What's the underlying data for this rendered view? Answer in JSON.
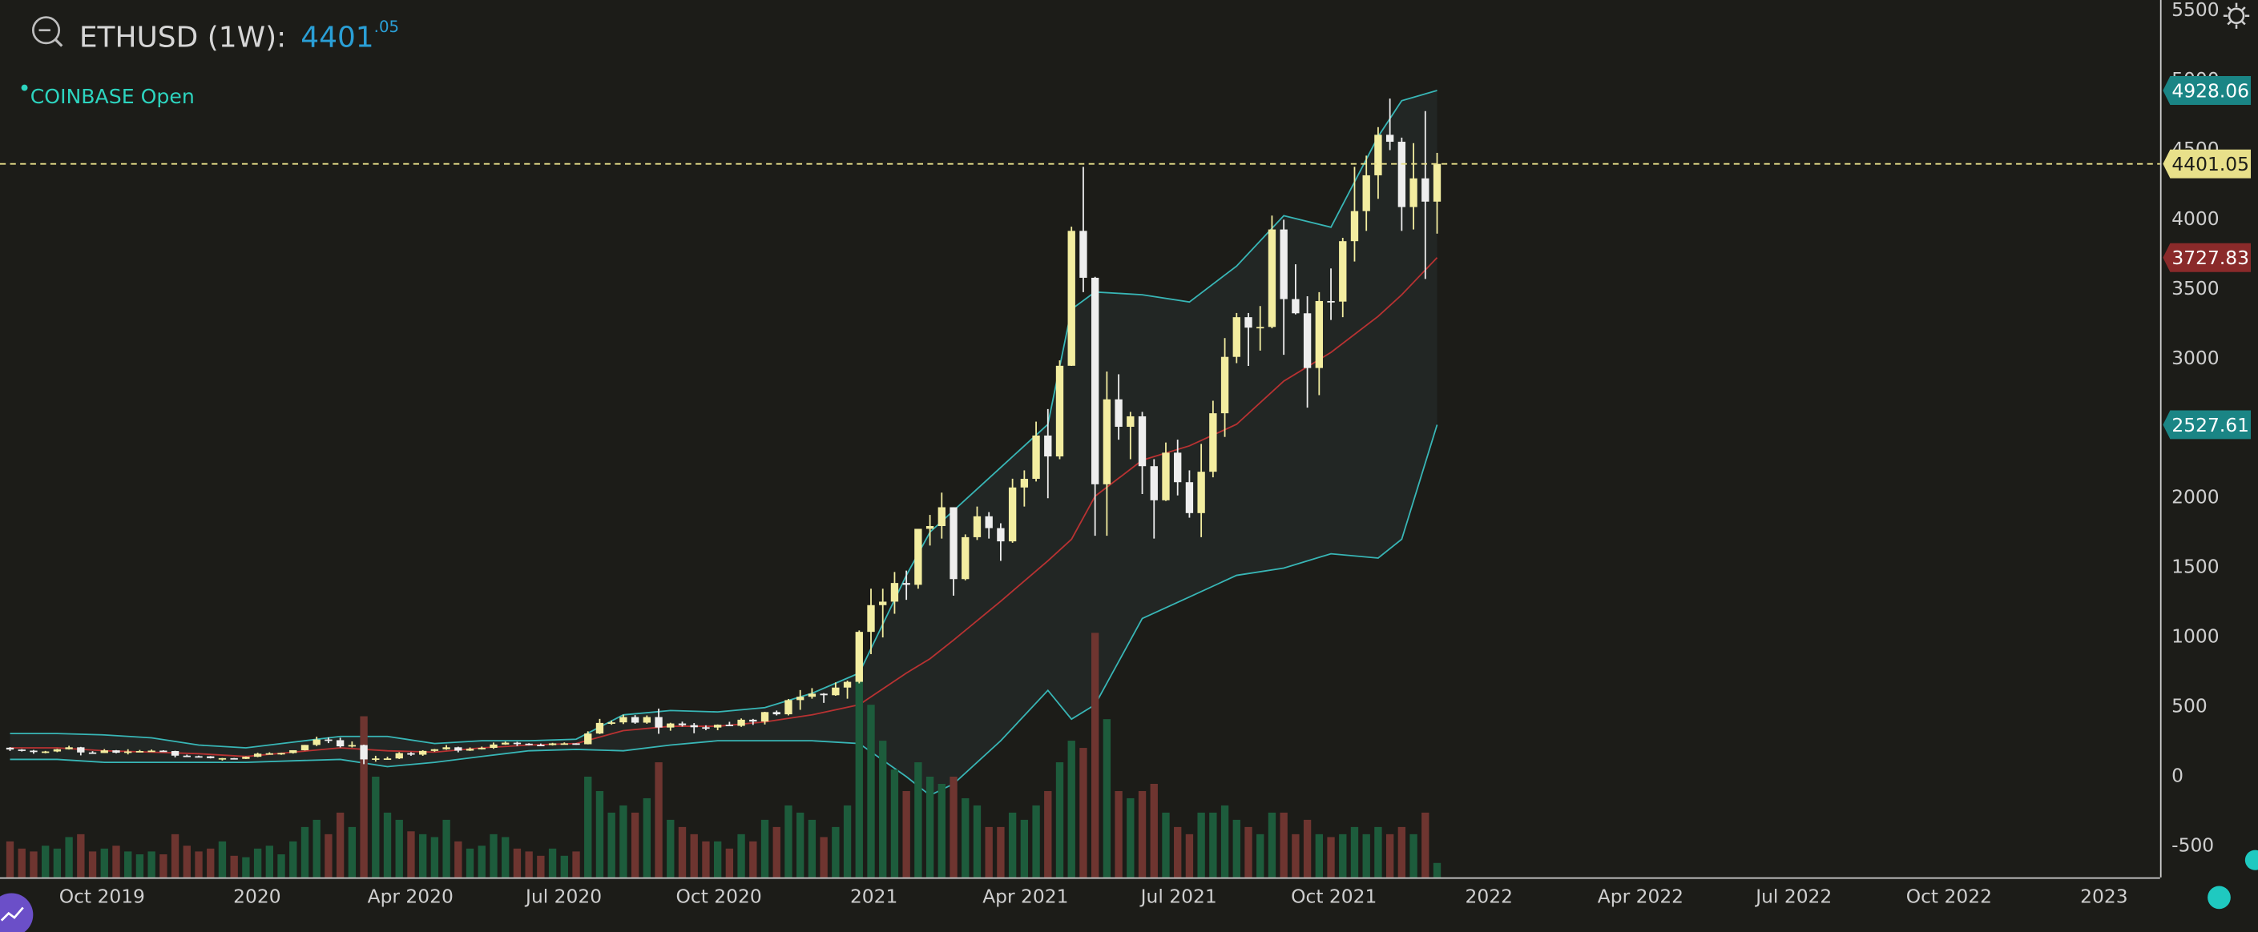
{
  "header": {
    "symbol": "ETHUSD (1W):",
    "price_int": "4401",
    "price_frac": ".05",
    "exchange": "COINBASE Open"
  },
  "chart_data": {
    "type": "candlestick",
    "up_color": "#f3eda0",
    "down_color": "#eeeeee",
    "volume_up_color": "#1d5c3c",
    "volume_down_color": "#6e3530",
    "open": [
      208,
      195,
      187,
      178,
      181,
      197,
      211,
      174,
      170,
      189,
      172,
      181,
      184,
      187,
      184,
      151,
      147,
      146,
      133,
      133,
      128,
      143,
      165,
      168,
      170,
      190,
      228,
      267,
      262,
      218,
      227,
      124,
      131,
      131,
      169,
      158,
      185,
      197,
      211,
      187,
      200,
      207,
      231,
      244,
      237,
      229,
      227,
      239,
      239,
      233,
      310,
      386,
      390,
      428,
      388,
      428,
      353,
      382,
      370,
      355,
      353,
      373,
      365,
      409,
      396,
      464,
      448,
      550,
      574,
      596,
      585,
      640,
      681,
      1040,
      1232,
      1257,
      1391,
      1378,
      1780,
      1800,
      1935,
      1419,
      1720,
      1870,
      1785,
      1690,
      2077,
      2139,
      2450,
      2300,
      2951,
      3920,
      3583,
      2100,
      2710,
      2513,
      2588,
      2230,
      1985,
      2327,
      2115,
      1893,
      2190,
      2610,
      3015,
      3300,
      3225,
      3230,
      3930,
      3430,
      3328,
      2935,
      3416,
      3412,
      3846,
      4062,
      4319,
      4610,
      4560,
      4091,
      4297,
      4130
    ],
    "high": [
      212,
      198,
      192,
      185,
      200,
      222,
      214,
      183,
      198,
      191,
      197,
      192,
      195,
      190,
      186,
      158,
      151,
      148,
      134,
      134,
      145,
      172,
      175,
      172,
      190,
      228,
      287,
      282,
      280,
      253,
      230,
      150,
      143,
      176,
      176,
      190,
      199,
      227,
      215,
      210,
      216,
      245,
      252,
      250,
      240,
      238,
      243,
      246,
      240,
      326,
      415,
      403,
      445,
      442,
      440,
      489,
      387,
      395,
      385,
      369,
      375,
      394,
      418,
      415,
      466,
      475,
      558,
      622,
      636,
      600,
      677,
      690,
      1050,
      1350,
      1350,
      1470,
      1480,
      1780,
      1880,
      2040,
      1935,
      1740,
      1940,
      1900,
      1820,
      2140,
      2200,
      2550,
      2640,
      2990,
      3950,
      4380,
      3590,
      2910,
      2890,
      2620,
      2620,
      2280,
      2400,
      2420,
      2200,
      2390,
      2700,
      3150,
      3330,
      3330,
      3380,
      4030,
      4000,
      3680,
      3450,
      3480,
      3650,
      3870,
      4380,
      4460,
      4665,
      4870,
      4590,
      4550,
      4780,
      4480
    ],
    "low": [
      185,
      181,
      165,
      168,
      176,
      195,
      153,
      168,
      170,
      168,
      160,
      178,
      183,
      180,
      139,
      143,
      144,
      131,
      116,
      125,
      127,
      140,
      160,
      157,
      166,
      188,
      220,
      241,
      210,
      210,
      90,
      108,
      126,
      127,
      150,
      150,
      179,
      193,
      175,
      185,
      195,
      200,
      229,
      220,
      225,
      220,
      224,
      237,
      229,
      232,
      306,
      373,
      378,
      380,
      380,
      308,
      330,
      360,
      312,
      334,
      334,
      363,
      358,
      372,
      375,
      440,
      440,
      480,
      560,
      530,
      581,
      560,
      670,
      880,
      1000,
      1170,
      1270,
      1350,
      1660,
      1710,
      1300,
      1410,
      1700,
      1710,
      1550,
      1680,
      1940,
      2120,
      2000,
      2280,
      2950,
      3480,
      1730,
      1730,
      2420,
      2280,
      2030,
      1710,
      1980,
      2020,
      1860,
      1720,
      2150,
      2440,
      2970,
      2950,
      3060,
      3220,
      3030,
      3320,
      2650,
      2740,
      3280,
      3300,
      3700,
      3920,
      4150,
      4500,
      3920,
      3930,
      3575,
      3900
    ],
    "close": [
      195,
      187,
      178,
      181,
      197,
      211,
      174,
      170,
      189,
      172,
      181,
      184,
      187,
      184,
      151,
      147,
      146,
      133,
      133,
      128,
      143,
      165,
      168,
      170,
      190,
      228,
      267,
      262,
      218,
      227,
      124,
      131,
      131,
      169,
      158,
      185,
      197,
      211,
      187,
      200,
      207,
      231,
      244,
      237,
      229,
      227,
      239,
      239,
      233,
      310,
      386,
      390,
      428,
      388,
      428,
      353,
      382,
      370,
      355,
      353,
      373,
      365,
      409,
      396,
      464,
      448,
      550,
      574,
      596,
      585,
      640,
      681,
      1040,
      1232,
      1257,
      1391,
      1378,
      1780,
      1800,
      1935,
      1419,
      1720,
      1870,
      1785,
      1690,
      2077,
      2139,
      2450,
      2300,
      2951,
      3920,
      3583,
      2100,
      2710,
      2513,
      2588,
      2230,
      1985,
      2327,
      2115,
      1893,
      2190,
      2610,
      3015,
      3300,
      3225,
      3230,
      3930,
      3430,
      3328,
      2935,
      3416,
      3412,
      3846,
      4062,
      4319,
      4610,
      4560,
      4091,
      4297,
      4130,
      4401.05
    ],
    "volume": [
      25,
      20,
      18,
      22,
      20,
      28,
      30,
      18,
      20,
      22,
      18,
      16,
      18,
      16,
      30,
      22,
      18,
      20,
      25,
      15,
      14,
      20,
      22,
      16,
      25,
      35,
      40,
      30,
      45,
      35,
      112,
      70,
      45,
      40,
      32,
      30,
      28,
      40,
      25,
      20,
      22,
      30,
      28,
      20,
      18,
      15,
      20,
      15,
      18,
      70,
      60,
      45,
      50,
      45,
      55,
      80,
      40,
      35,
      30,
      25,
      25,
      20,
      30,
      25,
      40,
      35,
      50,
      45,
      40,
      28,
      35,
      50,
      140,
      120,
      95,
      75,
      60,
      80,
      70,
      65,
      70,
      55,
      50,
      35,
      35,
      45,
      40,
      50,
      60,
      80,
      95,
      90,
      170,
      110,
      60,
      55,
      60,
      65,
      45,
      35,
      30,
      45,
      45,
      50,
      40,
      35,
      30,
      45,
      45,
      30,
      40,
      30,
      28,
      30,
      35,
      30,
      35,
      30,
      35,
      30,
      45,
      10
    ],
    "bands": {
      "x": [
        0,
        4,
        8,
        12,
        16,
        20,
        24,
        28,
        32,
        36,
        40,
        44,
        48,
        52,
        56,
        60,
        64,
        68,
        72,
        76,
        78,
        80,
        84,
        88,
        90,
        92,
        96,
        100,
        104,
        108,
        112,
        116,
        118,
        121
      ],
      "fill": "#222624",
      "upper": {
        "color": "#38b6b6",
        "label_color": "#1a8585",
        "values": [
          310,
          310,
          300,
          279,
          227,
          207,
          248,
          289,
          289,
          238,
          258,
          258,
          269,
          444,
          475,
          465,
          496,
          599,
          744,
          1446,
          1756,
          1911,
          2221,
          2531,
          3357,
          3481,
          3461,
          3409,
          3667,
          4029,
          3946,
          4597,
          4855,
          4928.06
        ]
      },
      "middle": {
        "color": "#b83232",
        "label_color": "#8a2a2a",
        "values": [
          207,
          207,
          186,
          176,
          165,
          145,
          176,
          207,
          186,
          176,
          207,
          227,
          238,
          331,
          362,
          362,
          393,
          444,
          517,
          744,
          847,
          981,
          1260,
          1550,
          1705,
          2014,
          2273,
          2376,
          2531,
          2841,
          3047,
          3306,
          3461,
          3727.83
        ]
      },
      "lower": {
        "color": "#38b6b6",
        "label_color": "#1a8585",
        "values": [
          124,
          124,
          103,
          103,
          103,
          103,
          114,
          124,
          72,
          103,
          145,
          186,
          196,
          186,
          227,
          258,
          258,
          258,
          238,
          0,
          -134,
          -52,
          258,
          620,
          413,
          517,
          1136,
          1291,
          1446,
          1498,
          1601,
          1570,
          1705,
          2527.61
        ]
      }
    },
    "price_line_color": "#e8e08a",
    "xlim": [
      -0.85,
      182.3
    ],
    "xticks": [
      {
        "value": 7.8,
        "label": "Oct 2019"
      },
      {
        "value": 20.95,
        "label": "2020"
      },
      {
        "value": 33.95,
        "label": "Apr 2020"
      },
      {
        "value": 46.95,
        "label": "Jul 2020"
      },
      {
        "value": 60.1,
        "label": "Oct 2020"
      },
      {
        "value": 73.25,
        "label": "2021"
      },
      {
        "value": 86.1,
        "label": "Apr 2021"
      },
      {
        "value": 99.1,
        "label": "Jul 2021"
      },
      {
        "value": 112.25,
        "label": "Oct 2021"
      },
      {
        "value": 125.4,
        "label": "2022"
      },
      {
        "value": 138.25,
        "label": "Apr 2022"
      },
      {
        "value": 151.25,
        "label": "Jul 2022"
      },
      {
        "value": 164.4,
        "label": "Oct 2022"
      },
      {
        "value": 177.55,
        "label": "2023"
      }
    ],
    "ylim": [
      -723,
      5578
    ],
    "yticks": [
      5500,
      5000,
      4500,
      4000,
      3500,
      3000,
      2500,
      2000,
      1500,
      1000,
      500,
      0,
      -500
    ],
    "grid": false
  }
}
